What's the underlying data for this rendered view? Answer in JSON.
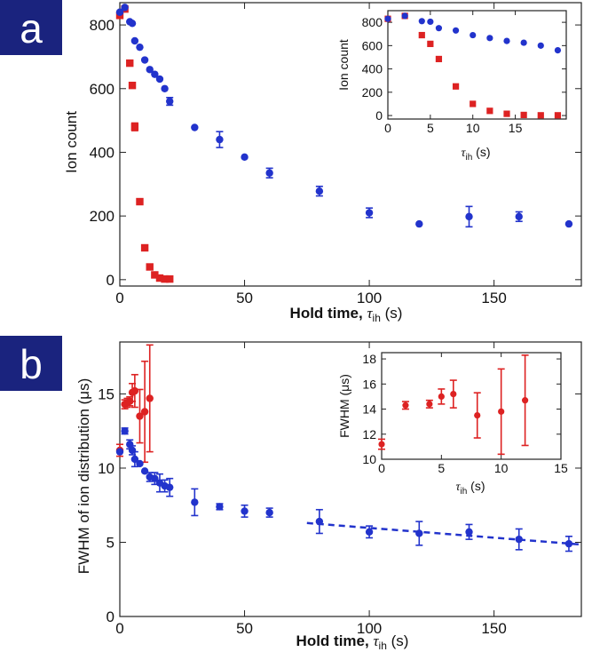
{
  "chart_data": [
    {
      "id": "a-main",
      "panel_label": "a",
      "type": "scatter",
      "xlabel_main": "Hold time, ",
      "xlabel_tau": "τ",
      "xlabel_sub": "ih",
      "xlabel_unit": " (s)",
      "ylabel": "Ion count",
      "xlim": [
        0,
        185
      ],
      "ylim": [
        -20,
        870
      ],
      "xticks": [
        0,
        50,
        100,
        150
      ],
      "yticks": [
        0,
        200,
        400,
        600,
        800
      ],
      "series": [
        {
          "name": "red",
          "color": "#dd2222",
          "marker": "square",
          "x": [
            0,
            2,
            4,
            5,
            6,
            8,
            10,
            12,
            14,
            16,
            18,
            20
          ],
          "y": [
            830,
            850,
            680,
            610,
            480,
            245,
            100,
            40,
            15,
            5,
            2,
            2
          ],
          "err": [
            0,
            0,
            0,
            0,
            12,
            0,
            0,
            0,
            0,
            0,
            0,
            0
          ]
        },
        {
          "name": "blue",
          "color": "#2233cc",
          "marker": "circle",
          "x": [
            0,
            2,
            4,
            5,
            6,
            8,
            10,
            12,
            14,
            16,
            18,
            20,
            30,
            40,
            50,
            60,
            80,
            100,
            120,
            140,
            160,
            180
          ],
          "y": [
            840,
            855,
            810,
            805,
            750,
            730,
            690,
            660,
            645,
            630,
            600,
            560,
            478,
            440,
            385,
            335,
            278,
            210,
            175,
            198,
            198,
            175
          ],
          "err": [
            0,
            0,
            0,
            0,
            0,
            0,
            0,
            0,
            0,
            0,
            0,
            12,
            0,
            25,
            0,
            15,
            15,
            15,
            0,
            32,
            15,
            0
          ]
        }
      ]
    },
    {
      "id": "a-inset",
      "type": "scatter",
      "xlabel_tau": "τ",
      "xlabel_sub": "ih",
      "xlabel_unit": " (s)",
      "ylabel": "Ion count",
      "xlim": [
        0,
        21
      ],
      "ylim": [
        -30,
        900
      ],
      "xticks": [
        0,
        5,
        10,
        15
      ],
      "yticks": [
        0,
        200,
        400,
        600,
        800
      ],
      "series": [
        {
          "name": "red",
          "color": "#dd2222",
          "marker": "square",
          "x": [
            0,
            2,
            4,
            5,
            6,
            8,
            10,
            12,
            14,
            16,
            18,
            20
          ],
          "y": [
            830,
            855,
            690,
            615,
            485,
            250,
            100,
            40,
            15,
            5,
            2,
            2
          ],
          "err": []
        },
        {
          "name": "blue",
          "color": "#2233cc",
          "marker": "circle",
          "x": [
            0,
            2,
            4,
            5,
            6,
            8,
            10,
            12,
            14,
            16,
            18,
            20
          ],
          "y": [
            830,
            855,
            810,
            805,
            750,
            730,
            690,
            665,
            640,
            625,
            600,
            560
          ],
          "err": []
        }
      ]
    },
    {
      "id": "b-main",
      "panel_label": "b",
      "type": "scatter",
      "xlabel_main": "Hold time, ",
      "xlabel_tau": "τ",
      "xlabel_sub": "ih",
      "xlabel_unit": " (s)",
      "ylabel": "FWHM of ion distribution (μs)",
      "xlim": [
        0,
        185
      ],
      "ylim": [
        0,
        18.5
      ],
      "xticks": [
        0,
        50,
        100,
        150
      ],
      "yticks": [
        0,
        5,
        10,
        15
      ],
      "fit_line": {
        "x": [
          75,
          185
        ],
        "y": [
          6.3,
          4.85
        ],
        "color": "#2233cc"
      },
      "series": [
        {
          "name": "red",
          "color": "#dd2222",
          "marker": "circle",
          "x": [
            0,
            2,
            3,
            4,
            5,
            6,
            8,
            10,
            12
          ],
          "y": [
            11.2,
            14.3,
            14.4,
            14.5,
            15.1,
            15.2,
            13.5,
            13.8,
            14.7
          ],
          "err": [
            0.4,
            0.3,
            0.3,
            0.3,
            0.6,
            1.1,
            1.8,
            3.4,
            3.6
          ]
        },
        {
          "name": "blue",
          "color": "#2233cc",
          "marker": "circle",
          "x": [
            0,
            2,
            4,
            5,
            6,
            8,
            10,
            12,
            14,
            16,
            18,
            20,
            30,
            40,
            50,
            60,
            80,
            100,
            120,
            140,
            160,
            180
          ],
          "y": [
            11.1,
            12.5,
            11.6,
            11.2,
            10.6,
            10.3,
            9.8,
            9.4,
            9.3,
            9.0,
            8.8,
            8.7,
            7.7,
            7.4,
            7.1,
            7.0,
            6.4,
            5.7,
            5.6,
            5.7,
            5.2,
            4.9
          ],
          "err": [
            0,
            0.2,
            0.3,
            0.3,
            0.5,
            0,
            0,
            0.3,
            0.4,
            0.6,
            0.4,
            0.6,
            0.9,
            0.2,
            0.4,
            0.3,
            0.8,
            0.4,
            0.8,
            0.5,
            0.7,
            0.5
          ]
        }
      ]
    },
    {
      "id": "b-inset",
      "type": "scatter",
      "xlabel_tau": "τ",
      "xlabel_sub": "ih",
      "xlabel_unit": " (s)",
      "ylabel": "FWHM (μs)",
      "xlim": [
        0,
        15
      ],
      "ylim": [
        10,
        18.5
      ],
      "xticks": [
        0,
        5,
        10,
        15
      ],
      "yticks": [
        10,
        12,
        14,
        16,
        18
      ],
      "series": [
        {
          "name": "red",
          "color": "#dd2222",
          "marker": "circle",
          "x": [
            0,
            2,
            4,
            5,
            6,
            8,
            10,
            12
          ],
          "y": [
            11.2,
            14.3,
            14.4,
            15.0,
            15.2,
            13.5,
            13.8,
            14.7
          ],
          "err": [
            0.4,
            0.3,
            0.3,
            0.6,
            1.1,
            1.8,
            3.4,
            3.6
          ]
        }
      ]
    }
  ]
}
